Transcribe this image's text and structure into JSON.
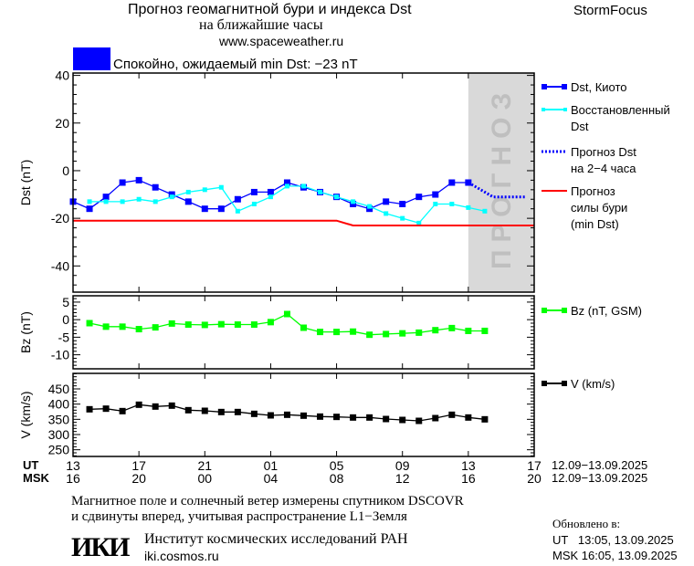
{
  "header": {
    "title_line1": "Прогноз геомагнитной бури и индекса Dst",
    "title_line2": "на ближайшие часы",
    "url": "www.spaceweather.ru",
    "brand": "StormFocus",
    "status_text": "Спокойно, ожидаемый min Dst: −23 nT",
    "status_color": "#0000ff"
  },
  "forecast_band_label": "ПРОГНОЗ",
  "time_axis": {
    "ut_label": "UT",
    "msk_label": "MSK",
    "ut_ticks": [
      "13",
      "17",
      "21",
      "01",
      "05",
      "09",
      "13",
      "17"
    ],
    "msk_ticks": [
      "16",
      "20",
      "00",
      "04",
      "08",
      "12",
      "16",
      "20"
    ],
    "ut_range": "12.09−13.09.2025",
    "msk_range": "12.09−13.09.2025"
  },
  "footer": {
    "note_line1": "Магнитное поле и солнечный ветер измерены спутником DSCOVR",
    "note_line2": "и сдвинуты вперед, учитывая распространение L1−Земля",
    "logo_text": "ИКИ",
    "institute": "Институт космических исследований РАН",
    "institute_url": "iki.cosmos.ru",
    "updated_label": "Обновлено в:",
    "updated_ut": "UT   13:05, 13.09.2025",
    "updated_msk": "MSK 16:05, 13.09.2025"
  },
  "chart_data": [
    {
      "type": "line",
      "ylabel": "Dst (nT)",
      "ylim": [
        -51,
        41
      ],
      "yticks": [
        40,
        20,
        0,
        -20,
        -40
      ],
      "x_unit": "hours since 13 UT 12.09",
      "forecast_region_x": [
        24,
        28
      ],
      "series": [
        {
          "name": "Dst, Киото",
          "legend": [
            "Dst, Киото"
          ],
          "color": "#0000ff",
          "marker": "square",
          "x_start": 0,
          "values": [
            -13,
            -16,
            -11,
            -5,
            -4,
            -7,
            -10,
            -13,
            -16,
            -16,
            -12,
            -9,
            -9,
            -5,
            -7,
            -9,
            -11,
            -14,
            -16,
            -13,
            -14,
            -11,
            -10,
            -5,
            -5
          ]
        },
        {
          "name": "Восстановленный Dst",
          "legend": [
            "Восстановленный",
            "Dst"
          ],
          "color": "#00ffff",
          "marker": "square-small",
          "x_start": 1,
          "values": [
            -13,
            -13,
            -13,
            -12,
            -13,
            -11,
            -9,
            -8,
            -7,
            -17,
            -14,
            -11,
            -6.5,
            -6.5,
            -9,
            -11,
            -13,
            -15,
            -18,
            -20,
            -22,
            -14,
            -14,
            -15.5,
            -17
          ]
        },
        {
          "name": "Прогноз Dst на 2-4 часа",
          "legend": [
            "Прогноз Dst",
            "на 2−4 часа"
          ],
          "color": "#0000ff",
          "style": "dotted",
          "points": [
            [
              24,
              -5
            ],
            [
              25,
              -9
            ],
            [
              25.5,
              -11
            ],
            [
              27.5,
              -11
            ]
          ]
        },
        {
          "name": "Прогноз силы бури (min Dst)",
          "legend": [
            "Прогноз",
            "силы бури",
            "(min Dst)"
          ],
          "color": "#ff0000",
          "style": "solid",
          "points": [
            [
              0,
              -21
            ],
            [
              16,
              -21
            ],
            [
              17,
              -23
            ],
            [
              28,
              -23
            ]
          ]
        }
      ]
    },
    {
      "type": "line",
      "ylabel": "Bz (nT)",
      "ylim": [
        -14,
        6.8
      ],
      "yticks": [
        5,
        0,
        -5,
        -10
      ],
      "series": [
        {
          "name": "Bz (nT, GSM)",
          "legend": [
            "Bz (nT, GSM)"
          ],
          "color": "#00ff00",
          "marker": "square",
          "x_start": 1,
          "values": [
            -1,
            -2,
            -2,
            -2.7,
            -2.2,
            -1.1,
            -1.4,
            -1.5,
            -1.3,
            -1.4,
            -1.4,
            -0.7,
            1.6,
            -2.3,
            -3.5,
            -3.5,
            -3.4,
            -4.3,
            -4.1,
            -3.9,
            -3.7,
            -3,
            -2.4,
            -3.2,
            -3.2
          ]
        }
      ]
    },
    {
      "type": "line",
      "ylabel": "V (km/s)",
      "ylim": [
        228,
        501
      ],
      "yticks": [
        450,
        400,
        350,
        300,
        250
      ],
      "series": [
        {
          "name": "V (km/s)",
          "legend": [
            "V (km/s)"
          ],
          "color": "#000000",
          "marker": "square",
          "x_start": 1,
          "values": [
            383,
            385,
            377,
            398,
            392,
            395,
            380,
            378,
            374,
            374,
            368,
            363,
            365,
            362,
            359,
            358,
            356,
            356,
            351,
            348,
            345,
            354,
            365,
            356,
            350
          ]
        }
      ]
    }
  ]
}
